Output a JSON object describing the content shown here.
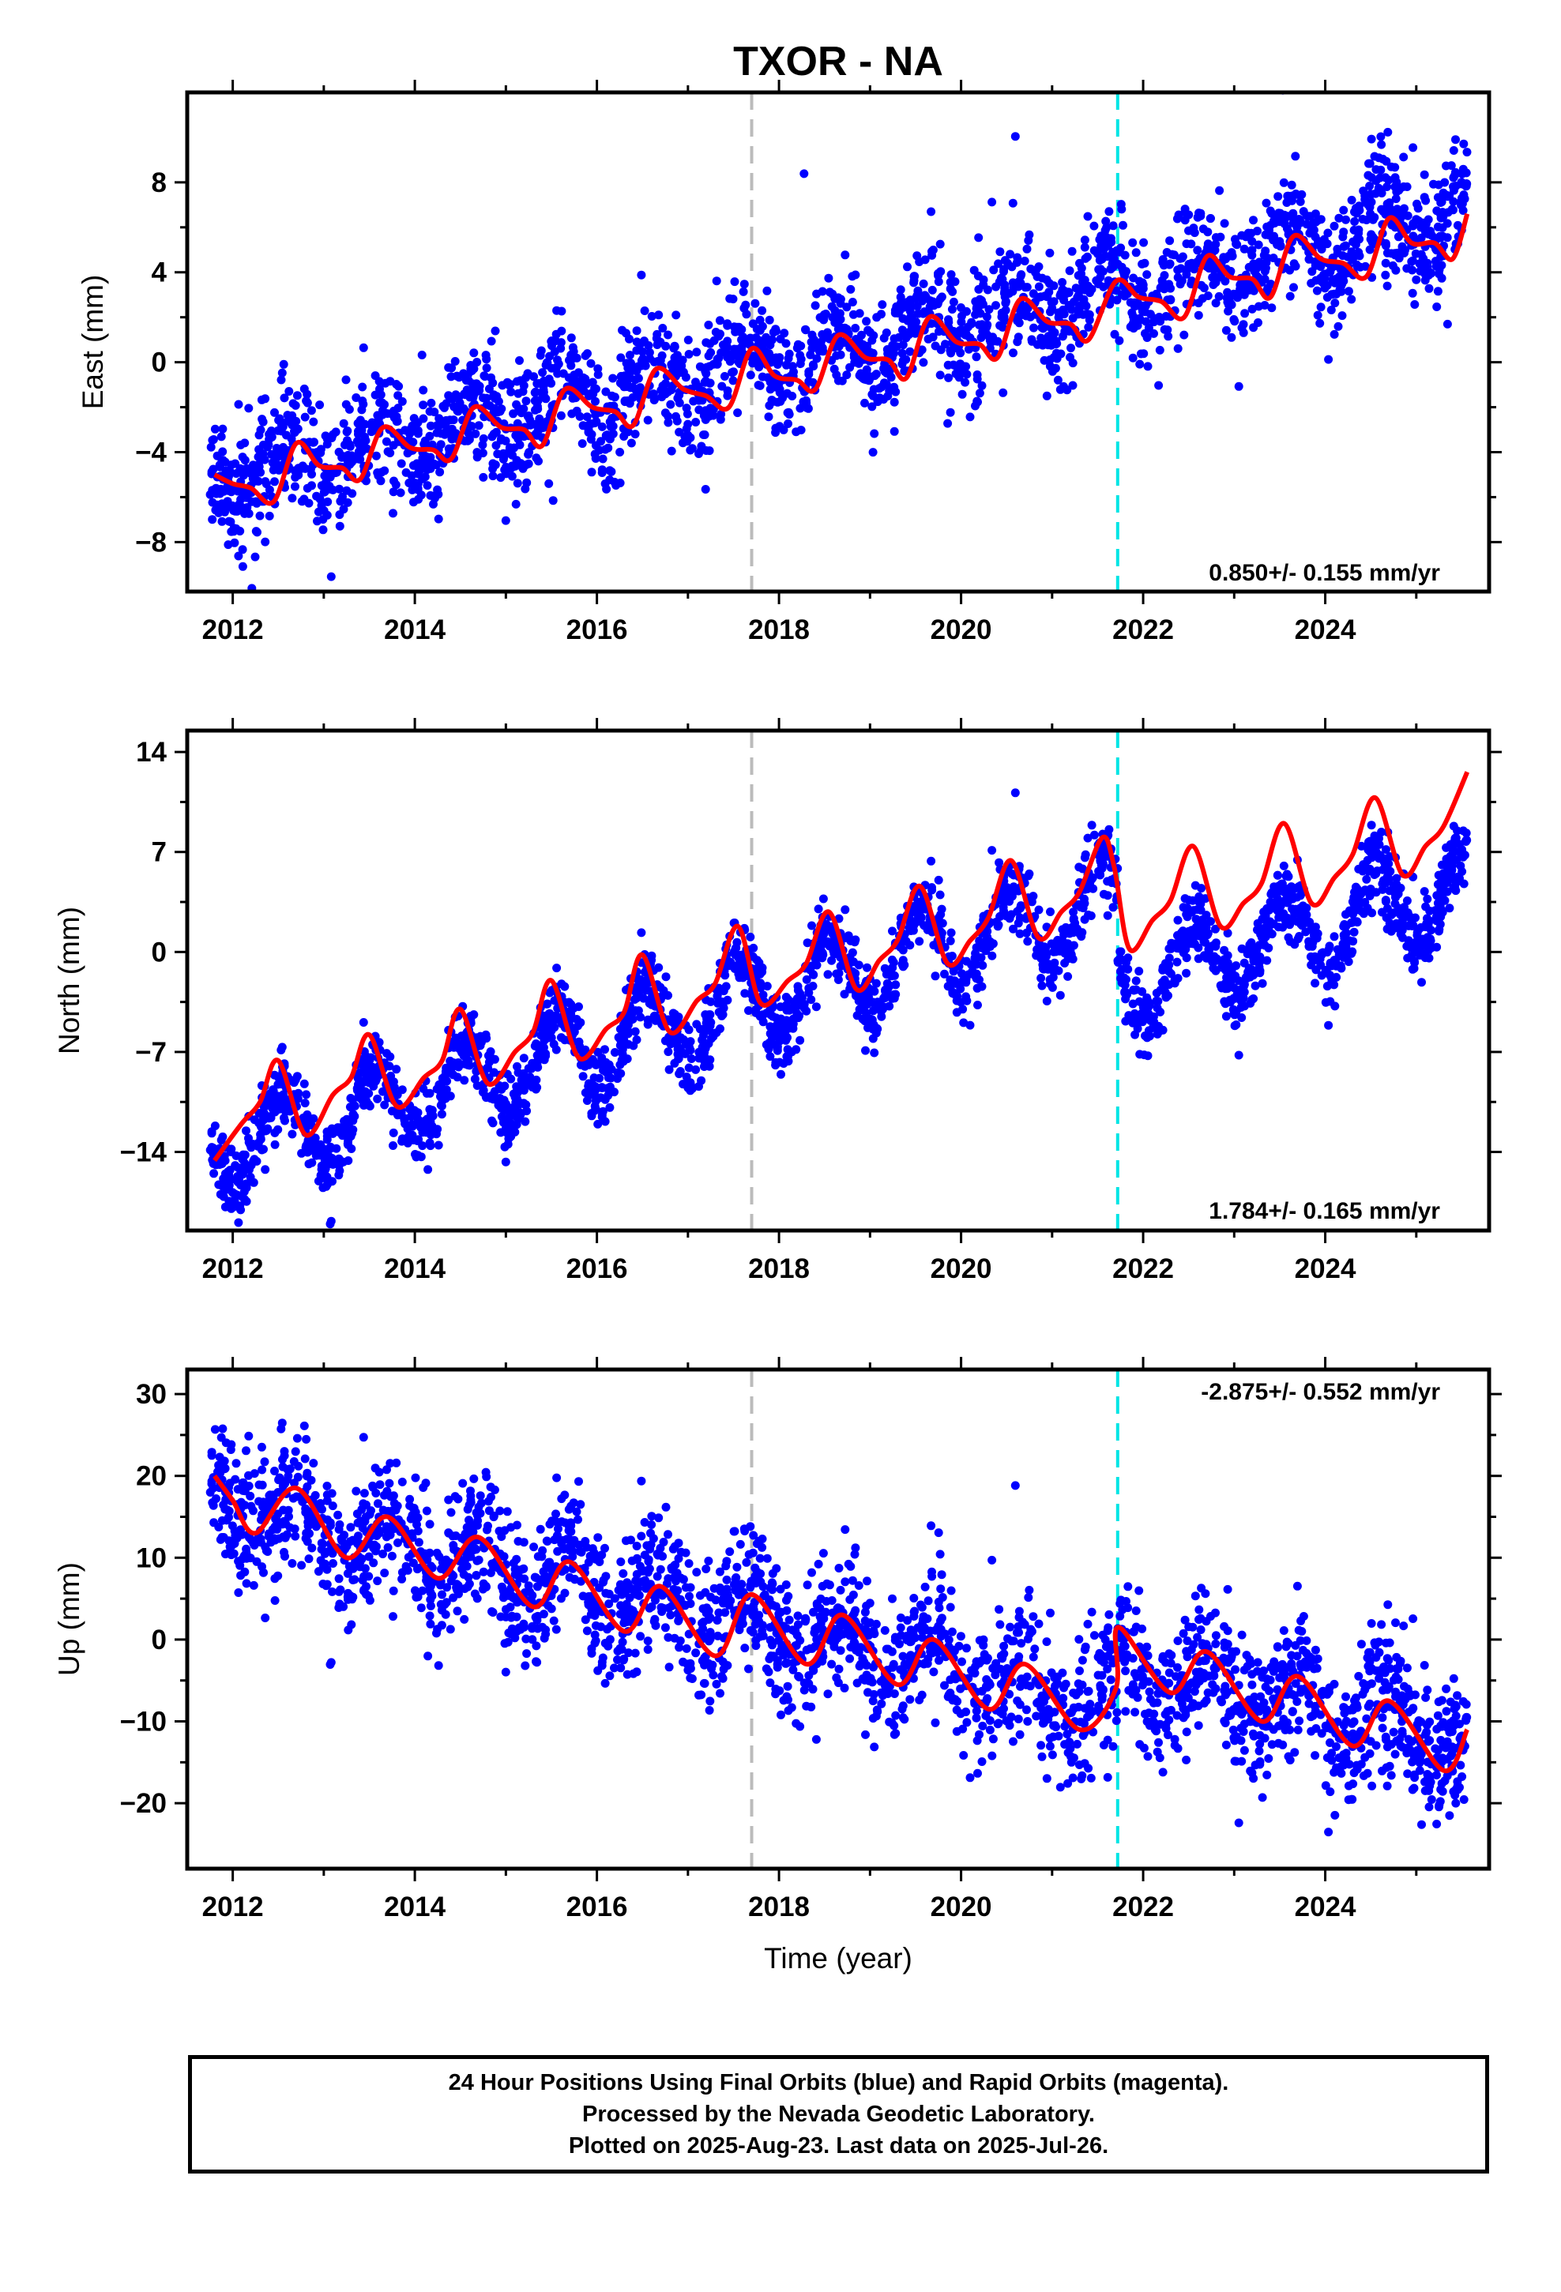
{
  "title": "TXOR - NA",
  "xlabel": "Time (year)",
  "colors": {
    "points": "#0000ff",
    "fit": "#ff0000",
    "offset_gray": "#bbbbbb",
    "offset_cyan": "#00e5e5",
    "frame": "#000000"
  },
  "footer": {
    "line1": "24 Hour Positions Using Final Orbits (blue) and Rapid Orbits (magenta).",
    "line2": "Processed by the Nevada Geodetic Laboratory.",
    "line3": "Plotted on 2025-Aug-23. Last data on 2025-Jul-26."
  },
  "chart_data": [
    {
      "type": "scatter",
      "name": "east",
      "ylabel": "East (mm)",
      "rate_label": "0.850+/- 0.155 mm/yr",
      "xlim": [
        2011.5,
        2025.8
      ],
      "ylim": [
        -10.2,
        12
      ],
      "xticks": [
        2012,
        2014,
        2016,
        2018,
        2020,
        2022,
        2024
      ],
      "xtick_labels": [
        "2012",
        "2014",
        "2016",
        "2018",
        "2020",
        "2022",
        "2024"
      ],
      "yticks": [
        -8,
        -4,
        0,
        4,
        8
      ],
      "ytick_labels": [
        "−8",
        "−4",
        "0",
        "4",
        "8"
      ],
      "offsets": [
        2017.7,
        2021.72
      ],
      "model": {
        "start": 2011.75,
        "end": 2025.56,
        "y0": -5.2,
        "rate": 0.85,
        "amp": 1.2,
        "peak": 2011.6,
        "step_at": 2021.72,
        "step": 0,
        "noise": 1.3
      },
      "fit_knots": [
        [
          2011.8,
          -5.0
        ],
        [
          2012.0,
          -5.4
        ],
        [
          2012.2,
          -5.6
        ],
        [
          2012.45,
          -6.2
        ],
        [
          2012.7,
          -3.6
        ],
        [
          2012.95,
          -4.6
        ],
        [
          2013.2,
          -4.7
        ],
        [
          2013.4,
          -5.2
        ],
        [
          2013.65,
          -2.9
        ],
        [
          2013.95,
          -3.8
        ],
        [
          2014.2,
          -3.9
        ],
        [
          2014.4,
          -4.3
        ],
        [
          2014.65,
          -2.0
        ],
        [
          2014.95,
          -2.9
        ],
        [
          2015.2,
          -3.0
        ],
        [
          2015.4,
          -3.7
        ],
        [
          2015.65,
          -1.2
        ],
        [
          2015.95,
          -2.0
        ],
        [
          2016.2,
          -2.2
        ],
        [
          2016.4,
          -2.8
        ],
        [
          2016.65,
          -0.3
        ],
        [
          2016.95,
          -1.2
        ],
        [
          2017.2,
          -1.5
        ],
        [
          2017.45,
          -2.0
        ],
        [
          2017.7,
          0.6
        ],
        [
          2017.95,
          -0.6
        ],
        [
          2018.2,
          -0.8
        ],
        [
          2018.4,
          -1.2
        ],
        [
          2018.65,
          1.2
        ],
        [
          2018.95,
          0.2
        ],
        [
          2019.2,
          0.1
        ],
        [
          2019.4,
          -0.7
        ],
        [
          2019.65,
          2.0
        ],
        [
          2019.95,
          0.9
        ],
        [
          2020.2,
          0.8
        ],
        [
          2020.4,
          0.2
        ],
        [
          2020.65,
          2.8
        ],
        [
          2020.95,
          1.8
        ],
        [
          2021.2,
          1.7
        ],
        [
          2021.4,
          1.0
        ],
        [
          2021.7,
          3.6
        ],
        [
          2021.95,
          2.9
        ],
        [
          2022.2,
          2.7
        ],
        [
          2022.45,
          2.0
        ],
        [
          2022.7,
          4.7
        ],
        [
          2022.95,
          3.8
        ],
        [
          2023.2,
          3.7
        ],
        [
          2023.4,
          2.9
        ],
        [
          2023.65,
          5.6
        ],
        [
          2023.95,
          4.6
        ],
        [
          2024.2,
          4.4
        ],
        [
          2024.45,
          3.8
        ],
        [
          2024.7,
          6.4
        ],
        [
          2024.95,
          5.3
        ],
        [
          2025.2,
          5.3
        ],
        [
          2025.4,
          4.6
        ],
        [
          2025.56,
          6.6
        ]
      ]
    },
    {
      "type": "scatter",
      "name": "north",
      "ylabel": "North (mm)",
      "rate_label": "1.784+/- 0.165 mm/yr",
      "xlim": [
        2011.5,
        2025.8
      ],
      "ylim": [
        -19.5,
        15.5
      ],
      "xticks": [
        2012,
        2014,
        2016,
        2018,
        2020,
        2022,
        2024
      ],
      "xtick_labels": [
        "2012",
        "2014",
        "2016",
        "2018",
        "2020",
        "2022",
        "2024"
      ],
      "yticks": [
        -14,
        -7,
        0,
        7,
        14
      ],
      "ytick_labels": [
        "−14",
        "−7",
        "0",
        "7",
        "14"
      ],
      "offsets": [
        2017.7,
        2021.72
      ],
      "model": {
        "start": 2011.75,
        "end": 2025.56,
        "y0": -14.0,
        "rate": 1.78,
        "amp": 3.0,
        "peak": 2011.55,
        "step_at": 2021.72,
        "step": -6.0,
        "noise": 1.3
      },
      "fit_knots": [
        [
          2011.8,
          -14.6
        ],
        [
          2012.1,
          -12.0
        ],
        [
          2012.3,
          -10.5
        ],
        [
          2012.5,
          -7.6
        ],
        [
          2012.8,
          -12.8
        ],
        [
          2013.1,
          -10.0
        ],
        [
          2013.3,
          -8.8
        ],
        [
          2013.5,
          -5.8
        ],
        [
          2013.8,
          -10.8
        ],
        [
          2014.1,
          -8.8
        ],
        [
          2014.3,
          -7.6
        ],
        [
          2014.5,
          -4.0
        ],
        [
          2014.8,
          -9.2
        ],
        [
          2015.1,
          -7.0
        ],
        [
          2015.3,
          -5.6
        ],
        [
          2015.5,
          -2.0
        ],
        [
          2015.8,
          -7.4
        ],
        [
          2016.1,
          -5.4
        ],
        [
          2016.3,
          -4.2
        ],
        [
          2016.5,
          -0.2
        ],
        [
          2016.8,
          -5.6
        ],
        [
          2017.1,
          -3.4
        ],
        [
          2017.3,
          -2.2
        ],
        [
          2017.55,
          1.8
        ],
        [
          2017.8,
          -3.6
        ],
        [
          2018.1,
          -2.0
        ],
        [
          2018.3,
          -0.8
        ],
        [
          2018.55,
          2.8
        ],
        [
          2018.85,
          -2.6
        ],
        [
          2019.1,
          -0.6
        ],
        [
          2019.3,
          0.8
        ],
        [
          2019.55,
          4.6
        ],
        [
          2019.85,
          -0.8
        ],
        [
          2020.1,
          0.8
        ],
        [
          2020.3,
          2.4
        ],
        [
          2020.55,
          6.4
        ],
        [
          2020.85,
          1.0
        ],
        [
          2021.1,
          2.8
        ],
        [
          2021.3,
          4.2
        ],
        [
          2021.55,
          8.0
        ],
        [
          2021.68,
          6.0
        ],
        [
          2021.85,
          0.2
        ],
        [
          2022.1,
          2.2
        ],
        [
          2022.3,
          3.6
        ],
        [
          2022.55,
          7.4
        ],
        [
          2022.85,
          1.8
        ],
        [
          2023.1,
          3.4
        ],
        [
          2023.3,
          4.8
        ],
        [
          2023.55,
          9.0
        ],
        [
          2023.85,
          3.4
        ],
        [
          2024.1,
          5.2
        ],
        [
          2024.3,
          6.8
        ],
        [
          2024.55,
          10.8
        ],
        [
          2024.85,
          5.4
        ],
        [
          2025.1,
          7.4
        ],
        [
          2025.3,
          8.8
        ],
        [
          2025.56,
          12.6
        ]
      ]
    },
    {
      "type": "scatter",
      "name": "up",
      "ylabel": "Up (mm)",
      "rate_label": "-2.875+/- 0.552 mm/yr",
      "xlim": [
        2011.5,
        2025.8
      ],
      "ylim": [
        -28,
        33
      ],
      "xticks": [
        2012,
        2014,
        2016,
        2018,
        2020,
        2022,
        2024
      ],
      "xtick_labels": [
        "2012",
        "2014",
        "2016",
        "2018",
        "2020",
        "2022",
        "2024"
      ],
      "yticks": [
        -20,
        -10,
        0,
        10,
        20,
        30
      ],
      "ytick_labels": [
        "−20",
        "−10",
        "0",
        "10",
        "20",
        "30"
      ],
      "offsets": [
        2017.7,
        2021.72
      ],
      "model": {
        "start": 2011.75,
        "end": 2025.56,
        "y0": 17.0,
        "rate": -2.5,
        "amp": 3.6,
        "peak": 2011.7,
        "step_at": 2021.72,
        "step": 5.0,
        "noise": 4.2
      },
      "fit_knots": [
        [
          2011.8,
          20.0
        ],
        [
          2012.0,
          17.0
        ],
        [
          2012.25,
          13.0
        ],
        [
          2012.7,
          18.5
        ],
        [
          2013.25,
          10.0
        ],
        [
          2013.7,
          15.0
        ],
        [
          2014.25,
          7.5
        ],
        [
          2014.7,
          12.5
        ],
        [
          2015.3,
          4.0
        ],
        [
          2015.7,
          9.5
        ],
        [
          2016.3,
          1.0
        ],
        [
          2016.7,
          6.5
        ],
        [
          2017.3,
          -2.0
        ],
        [
          2017.7,
          5.5
        ],
        [
          2018.3,
          -3.0
        ],
        [
          2018.7,
          3.0
        ],
        [
          2019.3,
          -5.5
        ],
        [
          2019.7,
          0.0
        ],
        [
          2020.3,
          -8.5
        ],
        [
          2020.7,
          -3.0
        ],
        [
          2021.3,
          -11.0
        ],
        [
          2021.7,
          -6.0
        ],
        [
          2021.73,
          1.5
        ],
        [
          2022.3,
          -6.5
        ],
        [
          2022.7,
          -1.5
        ],
        [
          2023.3,
          -10.0
        ],
        [
          2023.7,
          -4.5
        ],
        [
          2024.3,
          -13.0
        ],
        [
          2024.7,
          -7.5
        ],
        [
          2025.3,
          -16.0
        ],
        [
          2025.56,
          -11.0
        ]
      ]
    }
  ]
}
